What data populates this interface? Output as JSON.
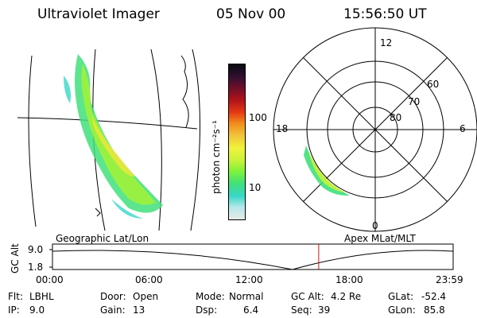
{
  "header": {
    "instrument": "Ultraviolet Imager",
    "date": "05 Nov 00",
    "time": "15:56:50 UT"
  },
  "colorbar": {
    "unit_label": "photon cm⁻²s⁻¹",
    "ticks": [
      "100",
      "10"
    ],
    "colors": [
      "#e8e8e8",
      "#b5e7ea",
      "#38d7c8",
      "#3fe07a",
      "#7ff23a",
      "#c7f23a",
      "#f2f23a",
      "#f2c43a",
      "#f28c1a",
      "#e63a12",
      "#b0121a",
      "#6e0e2a",
      "#301030",
      "#0a0a10"
    ]
  },
  "map": {
    "label": "Geographic Lat/Lon"
  },
  "polar": {
    "label": "Apex MLat/MLT",
    "mlt_labels": {
      "top": "12",
      "left": "18",
      "right": "6",
      "bottom": "0"
    },
    "lat_labels": [
      "60",
      "70",
      "80"
    ]
  },
  "altitude_plot": {
    "ylabel": "GC Alt",
    "yticks": [
      "9.0",
      "1.8"
    ],
    "xticks": [
      "00:00",
      "06:00",
      "12:00",
      "18:00",
      "23:59"
    ],
    "marker_time": "15:56:50",
    "marker_color": "#d01010"
  },
  "info": {
    "filter_label": "Flt:",
    "filter_value": "LBHL",
    "ip_label": "IP:",
    "ip_value": "9.0",
    "door_label": "Door:",
    "door_value": "Open",
    "gain_label": "Gain:",
    "gain_value": "13",
    "mode_label": "Mode:",
    "mode_value": "Normal",
    "dsp_label": "Dsp:",
    "dsp_value": "6.4",
    "gcalt_label": "GC Alt:",
    "gcalt_value": "4.2 Re",
    "seq_label": "Seq:",
    "seq_value": "39",
    "glat_label": "GLat:",
    "glat_value": "-52.4",
    "glon_label": "GLon:",
    "glon_value": "85.8"
  }
}
